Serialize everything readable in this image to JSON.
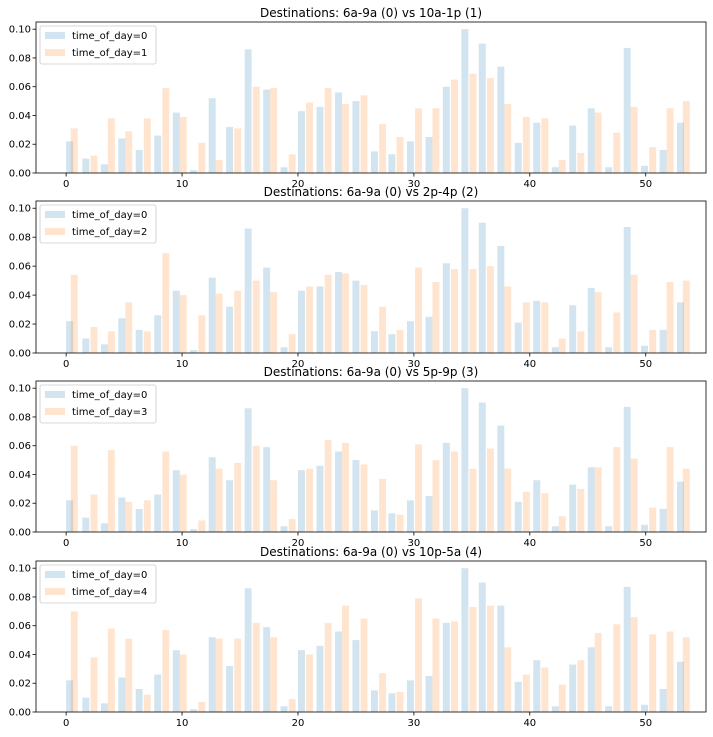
{
  "chart_data": [
    {
      "type": "bar",
      "title": "Destinations: 6a-9a (0) vs 10a-1p (1)",
      "xlim": [
        -2.6,
        55.2
      ],
      "ylim": [
        0,
        0.105
      ],
      "xticks": [
        "0",
        "10",
        "20",
        "30",
        "40",
        "50"
      ],
      "yticks": [
        "0.00",
        "0.02",
        "0.04",
        "0.06",
        "0.08",
        "0.10"
      ],
      "legend": "top-left",
      "series": [
        {
          "name": "time_of_day=0",
          "color": "#1f77b4",
          "opacity": 0.2,
          "bin_width": 0.6,
          "x": [
            0.3,
            1.7,
            3.3,
            4.8,
            6.3,
            7.9,
            9.5,
            11.0,
            12.6,
            14.1,
            15.7,
            17.3,
            18.8,
            20.3,
            21.9,
            23.5,
            25.0,
            26.6,
            28.1,
            29.7,
            31.3,
            32.8,
            34.4,
            35.9,
            37.5,
            39.0,
            40.6,
            42.2,
            43.7,
            45.3,
            46.8,
            48.4,
            49.9,
            51.5,
            53.0
          ],
          "values": [
            0.022,
            0.01,
            0.006,
            0.024,
            0.016,
            0.026,
            0.042,
            0.002,
            0.052,
            0.032,
            0.086,
            0.058,
            0.004,
            0.043,
            0.046,
            0.056,
            0.05,
            0.015,
            0.013,
            0.022,
            0.025,
            0.06,
            0.1,
            0.09,
            0.074,
            0.021,
            0.035,
            0.004,
            0.033,
            0.045,
            0.004,
            0.087,
            0.005,
            0.016,
            0.035
          ]
        },
        {
          "name": "time_of_day=1",
          "color": "#ff7f0e",
          "opacity": 0.2,
          "bin_width": 0.6,
          "x": [
            0.7,
            2.4,
            3.9,
            5.4,
            7.0,
            8.6,
            10.1,
            11.7,
            13.2,
            14.8,
            16.4,
            17.9,
            19.5,
            21.0,
            22.6,
            24.1,
            25.7,
            27.3,
            28.8,
            30.4,
            31.9,
            33.5,
            35.1,
            36.6,
            38.1,
            39.7,
            41.3,
            42.8,
            44.4,
            45.9,
            47.5,
            49.0,
            50.6,
            52.1,
            53.5
          ],
          "values": [
            0.031,
            0.012,
            0.038,
            0.029,
            0.038,
            0.059,
            0.039,
            0.021,
            0.009,
            0.031,
            0.06,
            0.059,
            0.013,
            0.049,
            0.059,
            0.048,
            0.054,
            0.034,
            0.025,
            0.045,
            0.045,
            0.065,
            0.069,
            0.066,
            0.048,
            0.039,
            0.038,
            0.009,
            0.014,
            0.042,
            0.028,
            0.046,
            0.018,
            0.045,
            0.05
          ]
        }
      ]
    },
    {
      "type": "bar",
      "title": "Destinations: 6a-9a (0) vs 2p-4p (2)",
      "xlim": [
        -2.6,
        55.2
      ],
      "ylim": [
        0,
        0.105
      ],
      "xticks": [
        "0",
        "10",
        "20",
        "30",
        "40",
        "50"
      ],
      "yticks": [
        "0.00",
        "0.02",
        "0.04",
        "0.06",
        "0.08",
        "0.10"
      ],
      "legend": "top-left",
      "series": [
        {
          "name": "time_of_day=0",
          "color": "#1f77b4",
          "opacity": 0.2,
          "bin_width": 0.6,
          "x": [
            0.3,
            1.7,
            3.3,
            4.8,
            6.3,
            7.9,
            9.5,
            11.0,
            12.6,
            14.1,
            15.7,
            17.3,
            18.8,
            20.3,
            21.9,
            23.5,
            25.0,
            26.6,
            28.1,
            29.7,
            31.3,
            32.8,
            34.4,
            35.9,
            37.5,
            39.0,
            40.6,
            42.2,
            43.7,
            45.3,
            46.8,
            48.4,
            49.9,
            51.5,
            53.0
          ],
          "values": [
            0.022,
            0.01,
            0.006,
            0.024,
            0.016,
            0.026,
            0.043,
            0.002,
            0.052,
            0.032,
            0.086,
            0.059,
            0.004,
            0.043,
            0.046,
            0.056,
            0.05,
            0.015,
            0.013,
            0.022,
            0.025,
            0.062,
            0.1,
            0.09,
            0.074,
            0.021,
            0.036,
            0.004,
            0.033,
            0.045,
            0.004,
            0.087,
            0.005,
            0.016,
            0.035
          ]
        },
        {
          "name": "time_of_day=2",
          "color": "#ff7f0e",
          "opacity": 0.2,
          "bin_width": 0.6,
          "x": [
            0.7,
            2.4,
            3.9,
            5.4,
            7.0,
            8.6,
            10.1,
            11.7,
            13.2,
            14.8,
            16.4,
            17.9,
            19.5,
            21.0,
            22.6,
            24.1,
            25.7,
            27.3,
            28.8,
            30.4,
            31.9,
            33.5,
            35.1,
            36.6,
            38.1,
            39.7,
            41.3,
            42.8,
            44.4,
            45.9,
            47.5,
            49.0,
            50.6,
            52.1,
            53.5
          ],
          "values": [
            0.054,
            0.018,
            0.015,
            0.035,
            0.015,
            0.069,
            0.04,
            0.026,
            0.041,
            0.043,
            0.05,
            0.042,
            0.013,
            0.046,
            0.054,
            0.055,
            0.047,
            0.032,
            0.016,
            0.059,
            0.049,
            0.058,
            0.058,
            0.06,
            0.046,
            0.035,
            0.035,
            0.01,
            0.015,
            0.042,
            0.028,
            0.054,
            0.016,
            0.049,
            0.05
          ]
        }
      ]
    },
    {
      "type": "bar",
      "title": "Destinations: 6a-9a (0) vs 5p-9p (3)",
      "xlim": [
        -2.6,
        55.2
      ],
      "ylim": [
        0,
        0.105
      ],
      "xticks": [
        "0",
        "10",
        "20",
        "30",
        "40",
        "50"
      ],
      "yticks": [
        "0.00",
        "0.02",
        "0.04",
        "0.06",
        "0.08",
        "0.10"
      ],
      "legend": "top-left",
      "series": [
        {
          "name": "time_of_day=0",
          "color": "#1f77b4",
          "opacity": 0.2,
          "bin_width": 0.6,
          "x": [
            0.3,
            1.7,
            3.3,
            4.8,
            6.3,
            7.9,
            9.5,
            11.0,
            12.6,
            14.1,
            15.7,
            17.3,
            18.8,
            20.3,
            21.9,
            23.5,
            25.0,
            26.6,
            28.1,
            29.7,
            31.3,
            32.8,
            34.4,
            35.9,
            37.5,
            39.0,
            40.6,
            42.2,
            43.7,
            45.3,
            46.8,
            48.4,
            49.9,
            51.5,
            53.0
          ],
          "values": [
            0.022,
            0.01,
            0.006,
            0.024,
            0.016,
            0.026,
            0.043,
            0.002,
            0.052,
            0.036,
            0.086,
            0.059,
            0.004,
            0.043,
            0.046,
            0.056,
            0.05,
            0.015,
            0.013,
            0.022,
            0.025,
            0.062,
            0.1,
            0.09,
            0.074,
            0.021,
            0.036,
            0.004,
            0.033,
            0.045,
            0.004,
            0.087,
            0.005,
            0.016,
            0.035
          ]
        },
        {
          "name": "time_of_day=3",
          "color": "#ff7f0e",
          "opacity": 0.2,
          "bin_width": 0.6,
          "x": [
            0.7,
            2.4,
            3.9,
            5.4,
            7.0,
            8.6,
            10.1,
            11.7,
            13.2,
            14.8,
            16.4,
            17.9,
            19.5,
            21.0,
            22.6,
            24.1,
            25.7,
            27.3,
            28.8,
            30.4,
            31.9,
            33.5,
            35.1,
            36.6,
            38.1,
            39.7,
            41.3,
            42.8,
            44.4,
            45.9,
            47.5,
            49.0,
            50.6,
            52.1,
            53.5
          ],
          "values": [
            0.06,
            0.026,
            0.057,
            0.021,
            0.022,
            0.056,
            0.04,
            0.008,
            0.044,
            0.048,
            0.06,
            0.036,
            0.009,
            0.044,
            0.064,
            0.062,
            0.047,
            0.037,
            0.012,
            0.061,
            0.05,
            0.056,
            0.044,
            0.058,
            0.044,
            0.028,
            0.027,
            0.011,
            0.03,
            0.045,
            0.059,
            0.051,
            0.017,
            0.059,
            0.044
          ]
        }
      ]
    },
    {
      "type": "bar",
      "title": "Destinations: 6a-9a (0) vs 10p-5a (4)",
      "xlim": [
        -2.6,
        55.2
      ],
      "ylim": [
        0,
        0.105
      ],
      "xticks": [
        "0",
        "10",
        "20",
        "30",
        "40",
        "50"
      ],
      "yticks": [
        "0.00",
        "0.02",
        "0.04",
        "0.06",
        "0.08",
        "0.10"
      ],
      "legend": "top-left",
      "series": [
        {
          "name": "time_of_day=0",
          "color": "#1f77b4",
          "opacity": 0.2,
          "bin_width": 0.6,
          "x": [
            0.3,
            1.7,
            3.3,
            4.8,
            6.3,
            7.9,
            9.5,
            11.0,
            12.6,
            14.1,
            15.7,
            17.3,
            18.8,
            20.3,
            21.9,
            23.5,
            25.0,
            26.6,
            28.1,
            29.7,
            31.3,
            32.8,
            34.4,
            35.9,
            37.5,
            39.0,
            40.6,
            42.2,
            43.7,
            45.3,
            46.8,
            48.4,
            49.9,
            51.5,
            53.0
          ],
          "values": [
            0.022,
            0.01,
            0.006,
            0.024,
            0.016,
            0.026,
            0.043,
            0.002,
            0.052,
            0.032,
            0.086,
            0.059,
            0.004,
            0.043,
            0.046,
            0.056,
            0.05,
            0.015,
            0.013,
            0.022,
            0.025,
            0.062,
            0.1,
            0.09,
            0.074,
            0.021,
            0.036,
            0.004,
            0.033,
            0.045,
            0.004,
            0.087,
            0.005,
            0.016,
            0.035
          ]
        },
        {
          "name": "time_of_day=4",
          "color": "#ff7f0e",
          "opacity": 0.2,
          "bin_width": 0.6,
          "x": [
            0.7,
            2.4,
            3.9,
            5.4,
            7.0,
            8.6,
            10.1,
            11.7,
            13.2,
            14.8,
            16.4,
            17.9,
            19.5,
            21.0,
            22.6,
            24.1,
            25.7,
            27.3,
            28.8,
            30.4,
            31.9,
            33.5,
            35.1,
            36.6,
            38.1,
            39.7,
            41.3,
            42.8,
            44.4,
            45.9,
            47.5,
            49.0,
            50.6,
            52.1,
            53.5
          ],
          "values": [
            0.07,
            0.038,
            0.058,
            0.051,
            0.012,
            0.057,
            0.04,
            0.007,
            0.051,
            0.051,
            0.062,
            0.052,
            0.009,
            0.04,
            0.062,
            0.074,
            0.065,
            0.027,
            0.014,
            0.079,
            0.065,
            0.063,
            0.073,
            0.074,
            0.045,
            0.026,
            0.031,
            0.019,
            0.036,
            0.055,
            0.061,
            0.066,
            0.054,
            0.056,
            0.052
          ]
        }
      ]
    }
  ]
}
